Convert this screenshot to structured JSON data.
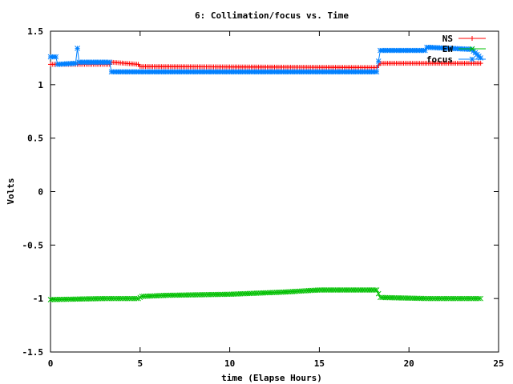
{
  "chart_data": {
    "type": "line",
    "title": "6: Collimation/focus vs. Time",
    "xlabel": "time (Elapse Hours)",
    "ylabel": "Volts",
    "xlim": [
      0,
      25
    ],
    "ylim": [
      -1.5,
      1.5
    ],
    "xticks": [
      0,
      5,
      10,
      15,
      20,
      25
    ],
    "xtick_labels": [
      "0",
      "5",
      "10",
      "15",
      "20",
      "25"
    ],
    "yticks": [
      -1.5,
      -1,
      -0.5,
      0,
      0.5,
      1,
      1.5
    ],
    "ytick_labels": [
      "-1.5",
      "-1",
      "-0.5",
      "0",
      "0.5",
      "1",
      "1.5"
    ],
    "legend_position": "top-right",
    "series": [
      {
        "name": "NS",
        "color": "#ff0000",
        "marker": "plus",
        "x": [
          0,
          1.5,
          3.3,
          3.4,
          4.9,
          5.0,
          18.2,
          18.4,
          24.0
        ],
        "y": [
          1.19,
          1.19,
          1.19,
          1.21,
          1.19,
          1.17,
          1.16,
          1.2,
          1.2
        ]
      },
      {
        "name": "EW",
        "color": "#00c000",
        "marker": "cross",
        "x": [
          0,
          3.0,
          4.9,
          5.1,
          6.5,
          10.0,
          13.0,
          15.0,
          18.2,
          18.4,
          21.0,
          24.0
        ],
        "y": [
          -1.01,
          -1.0,
          -1.0,
          -0.98,
          -0.97,
          -0.96,
          -0.94,
          -0.92,
          -0.92,
          -0.99,
          -1.0,
          -1.0
        ]
      },
      {
        "name": "focus",
        "color": "#0080ff",
        "marker": "star",
        "x": [
          0,
          0.3,
          0.4,
          1.4,
          1.5,
          1.6,
          3.3,
          3.4,
          18.2,
          18.4,
          20.9,
          21.0,
          23.5,
          24.0
        ],
        "y": [
          1.26,
          1.26,
          1.19,
          1.2,
          1.34,
          1.21,
          1.21,
          1.12,
          1.12,
          1.32,
          1.32,
          1.35,
          1.33,
          1.25
        ]
      }
    ]
  }
}
